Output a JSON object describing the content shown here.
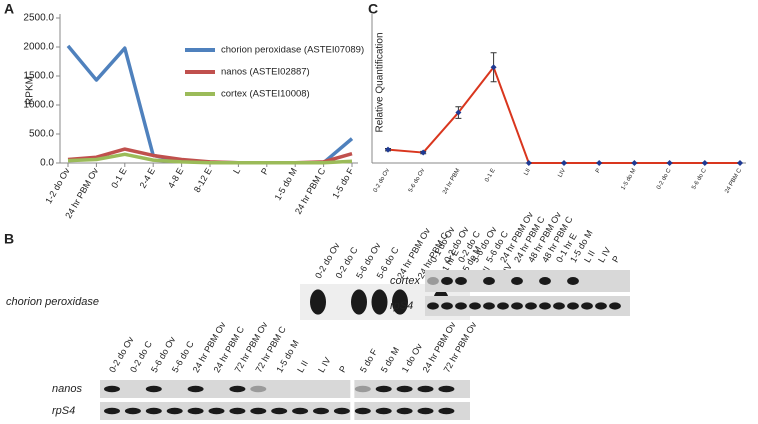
{
  "panel_labels": [
    "A",
    "B",
    "C"
  ],
  "chart_data": [
    {
      "type": "line",
      "ylabel": "RPKM",
      "categories": [
        "1-2 do Ov",
        "24 hr PBM Ov",
        "0-1 E",
        "2-4 E",
        "4-8 E",
        "8-12 E",
        "L",
        "P",
        "1-5 do M",
        "24 hr PBM C",
        "1-5 do F"
      ],
      "series": [
        {
          "name": "chorion peroxidase (ASTEI07089)",
          "color": "#4f81bd",
          "values": [
            2020,
            1430,
            1980,
            130,
            30,
            10,
            5,
            5,
            5,
            5,
            420
          ]
        },
        {
          "name": "nanos (ASTEI02887)",
          "color": "#c0504d",
          "values": [
            60,
            100,
            240,
            130,
            60,
            20,
            5,
            5,
            5,
            20,
            160
          ]
        },
        {
          "name": "cortex (ASTEI10008)",
          "color": "#9bbb59",
          "values": [
            40,
            60,
            150,
            50,
            20,
            5,
            5,
            5,
            5,
            5,
            30
          ]
        }
      ],
      "ylim": [
        0,
        2500
      ],
      "yticks": [
        {
          "value": 0,
          "label": "0.0"
        },
        {
          "value": 500,
          "label": "500.0"
        },
        {
          "value": 1000,
          "label": "1000.0"
        },
        {
          "value": 1500,
          "label": "1500.0"
        },
        {
          "value": 2000,
          "label": "2000.0"
        },
        {
          "value": 2500,
          "label": "2500.0"
        }
      ],
      "legend": "upper right"
    },
    {
      "type": "line",
      "ylabel": "Relative Quantification",
      "categories": [
        "0-2 do Ov",
        "5-6 do Ov",
        "24 hr PBM",
        "0-1 E",
        "LII",
        "LIV",
        "P",
        "1-5 do M",
        "0-2 do C",
        "5-6 do C",
        "24 PBM C"
      ],
      "series": [
        {
          "color": "#d9361e",
          "marker_color": "#1f3a93",
          "values": [
            23,
            18,
            87,
            165,
            0,
            0,
            0,
            0,
            0,
            0,
            0
          ],
          "errors": [
            2,
            2,
            10,
            25,
            0,
            0,
            0,
            0,
            0,
            0,
            0
          ]
        }
      ],
      "ylim": [
        0,
        250
      ]
    }
  ],
  "gels": [
    {
      "lanes": [
        "0-2 do Ov",
        "0-2 do C",
        "5-6 do Ov",
        "5-6 do C",
        "24 hr PBM Ov",
        "24 hr PBM C",
        "0-1 hr E",
        "1-5 do M",
        "L II",
        "L IV",
        "P"
      ],
      "rows": [
        "chorion peroxidase"
      ]
    },
    {
      "lanes": [
        "0-1 do Ov",
        "0-2 do Ov",
        "0-2 do C",
        "5-6 do Ov",
        "5-6 do C",
        "24 hr PBM Ov",
        "24 hr PBM C",
        "48 hr PBM Ov",
        "48 hr PBM C",
        "0-1 hr E",
        "1-5 do M",
        "L II",
        "L IV",
        "P"
      ],
      "rows": [
        "cortex",
        "rpS4"
      ]
    },
    {
      "lanes": [
        "0-2 do Ov",
        "0-2 do C",
        "5-6 do Ov",
        "5-6 do C",
        "24 hr PBM Ov",
        "24 hr PBM C",
        "72 hr PBM Ov",
        "72 hr PBM C",
        "1-5 do M",
        "L II",
        "L IV",
        "P",
        "5 do F",
        "5 do M",
        "1 do Ov",
        "24 hr PBM Ov",
        "72 hr PBM Ov"
      ],
      "rows": [
        "nanos",
        "rpS4"
      ]
    }
  ]
}
